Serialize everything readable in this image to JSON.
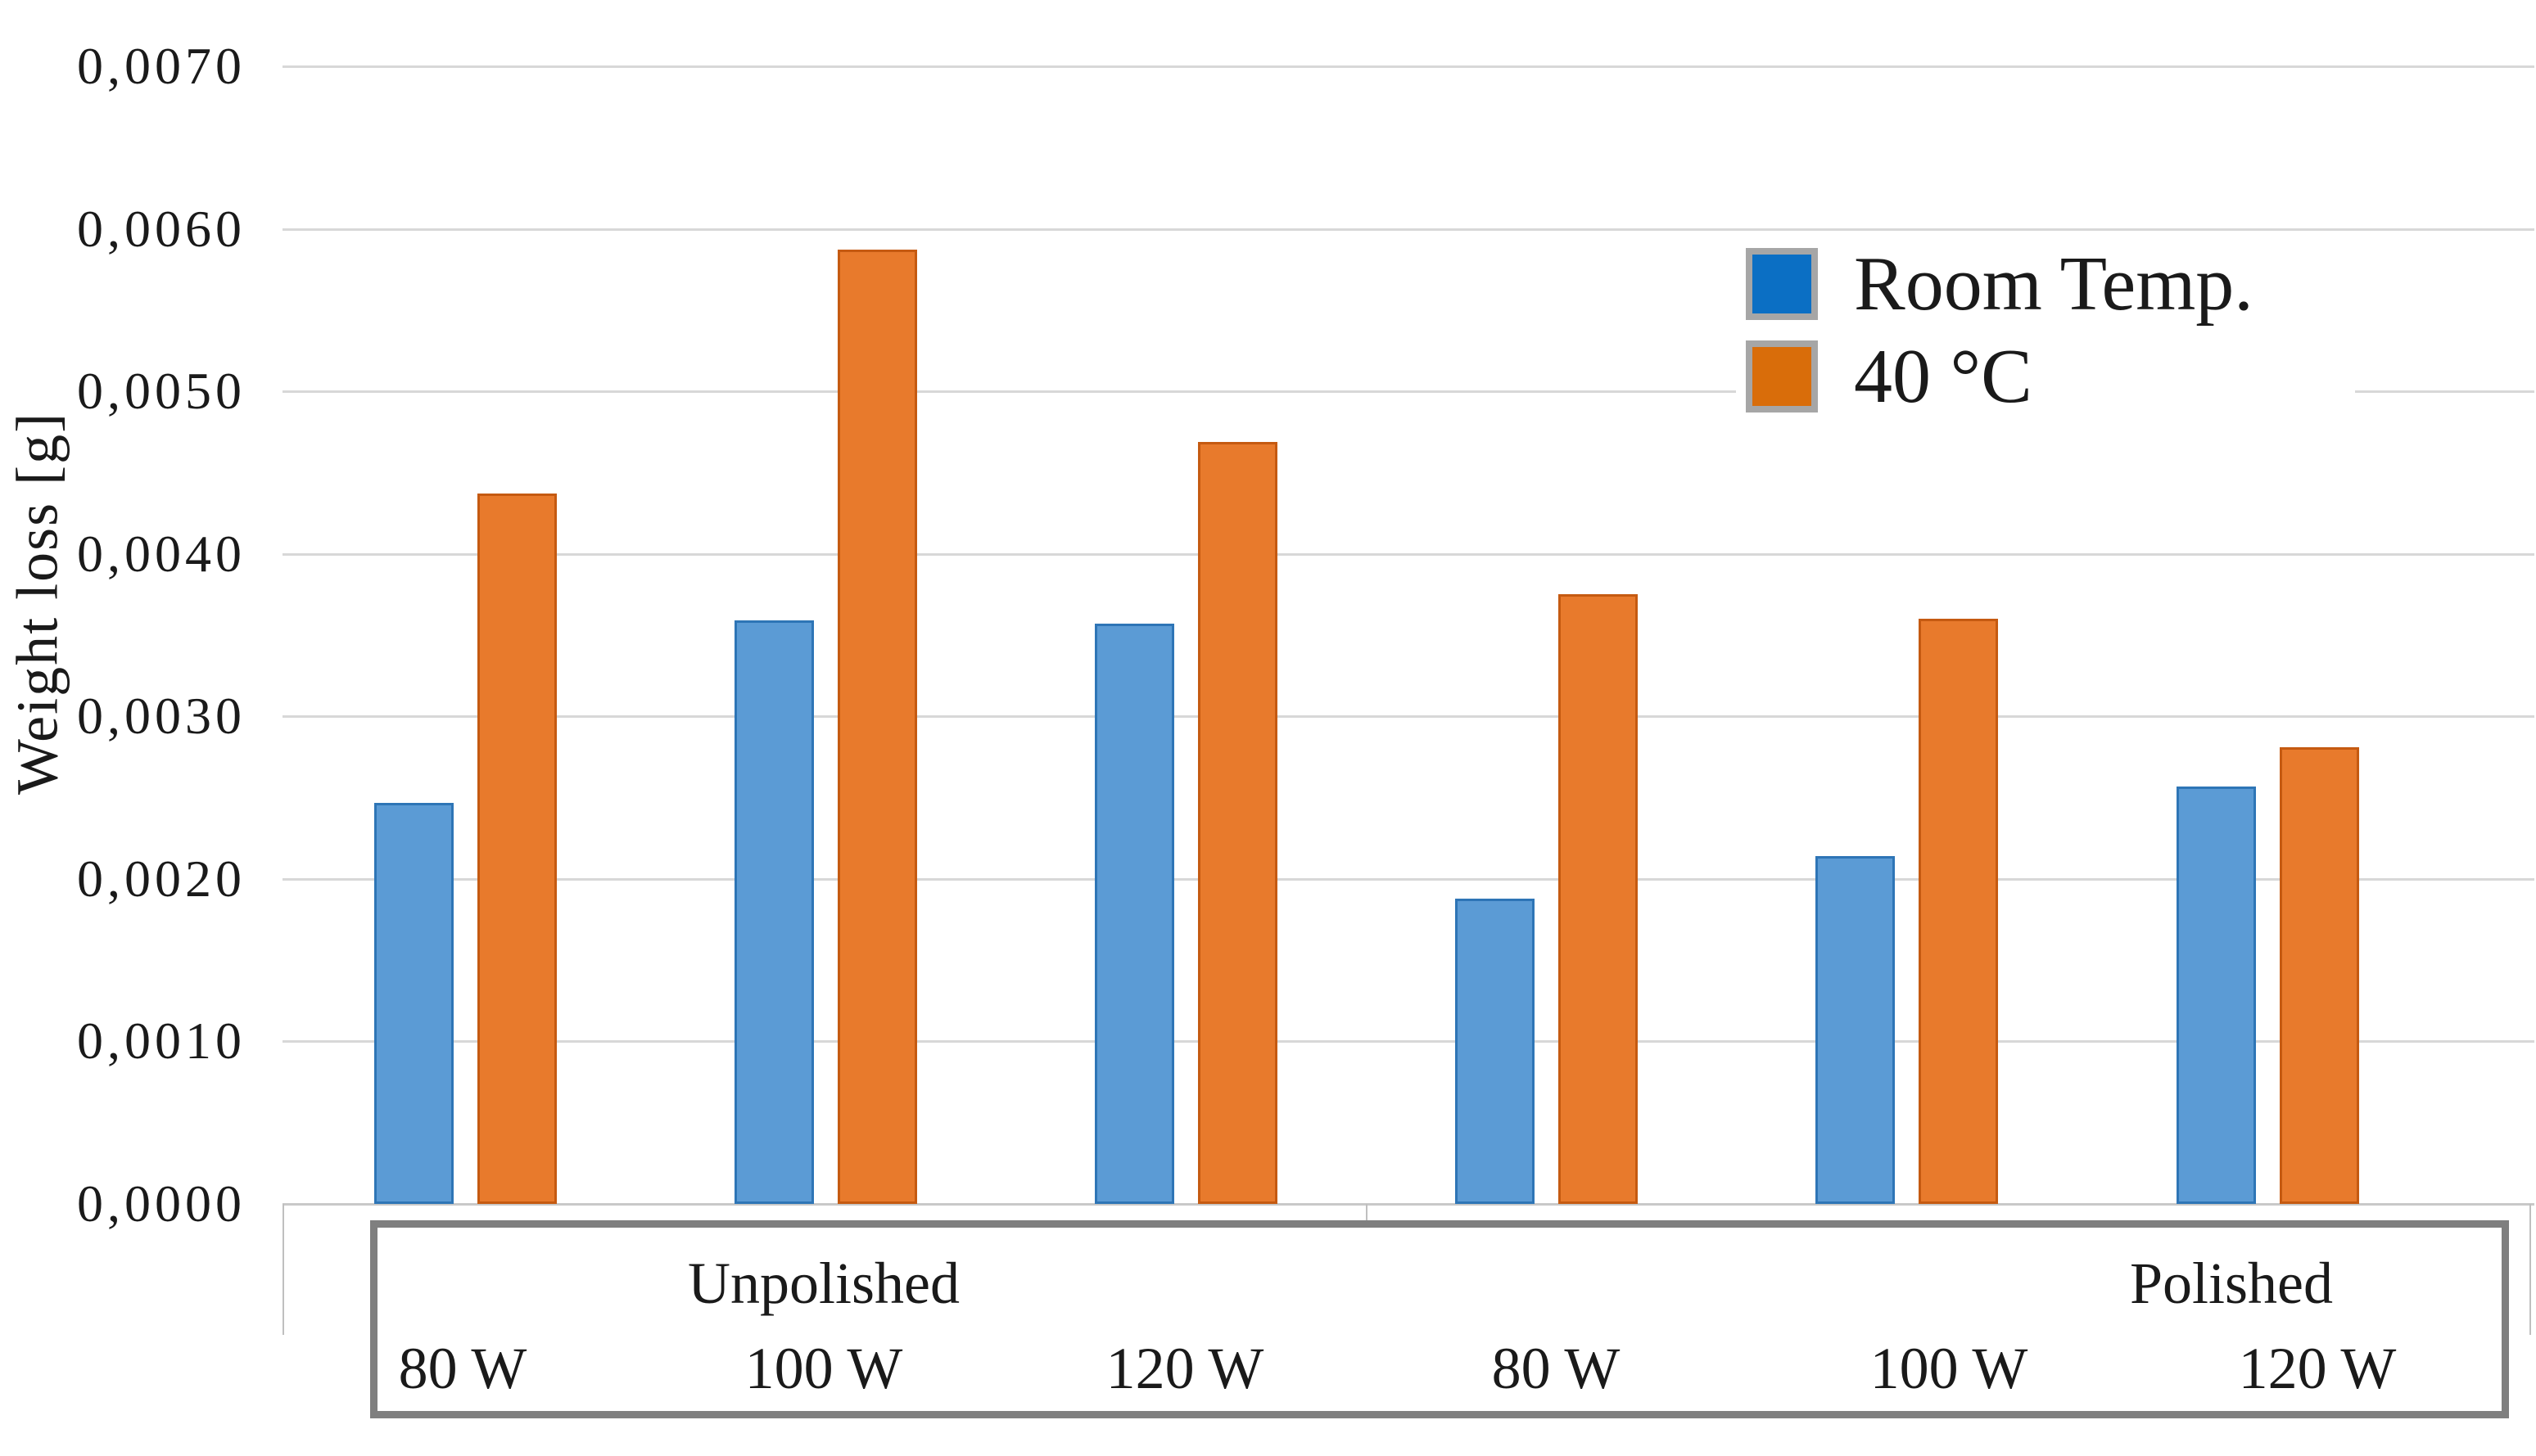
{
  "chart_data": {
    "type": "bar",
    "title": "",
    "ylabel": "Weight loss [g]",
    "ylim": [
      0,
      0.007
    ],
    "ytick_labels": [
      "0,0000",
      "0,0010",
      "0,0020",
      "0,0030",
      "0,0040",
      "0,0050",
      "0,0060",
      "0,0070"
    ],
    "grid": true,
    "legend_position": "top-right",
    "groups": [
      {
        "label": "Unpolished",
        "categories": [
          "80 W",
          "100 W",
          "120 W"
        ]
      },
      {
        "label": "Polished",
        "categories": [
          "80 W",
          "100 W",
          "120 W"
        ]
      }
    ],
    "categories": [
      "80 W",
      "100 W",
      "120 W",
      "80 W",
      "100 W",
      "120 W"
    ],
    "series": [
      {
        "name": "Room Temp.",
        "fill": "#5B9BD5",
        "outline": "#2E75B6",
        "legend_swatch": "#0B6FC4",
        "values": [
          0.00247,
          0.00359,
          0.00357,
          0.00188,
          0.00214,
          0.00257
        ]
      },
      {
        "name": "40 °C",
        "fill": "#E87A2C",
        "outline": "#C55A11",
        "legend_swatch": "#D96D0A",
        "values": [
          0.00437,
          0.00587,
          0.00469,
          0.00375,
          0.0036,
          0.00281
        ]
      }
    ],
    "colors": {
      "gridline": "#d8d8d8",
      "axis_ticks": "#bfbfbf",
      "category_box_border": "#7f7f7f",
      "legend_swatch_frame": "#a6a6a6",
      "text": "#1a1a1a"
    }
  }
}
